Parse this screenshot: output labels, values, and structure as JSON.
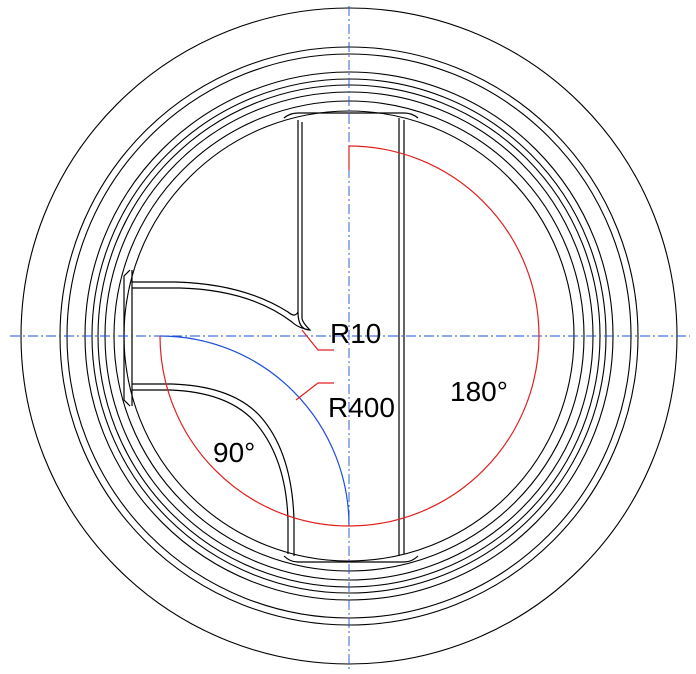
{
  "drawing": {
    "labels": {
      "fillet_small": "R10",
      "arc_large": "R400",
      "angle_bend": "90°",
      "angle_straight": "180°"
    },
    "colors": {
      "outline": "#000000",
      "centerline": "#1f4fd8",
      "radius_arc": "#1f4fd8",
      "angle_arc": "#e02020",
      "leader": "#e02020"
    }
  }
}
